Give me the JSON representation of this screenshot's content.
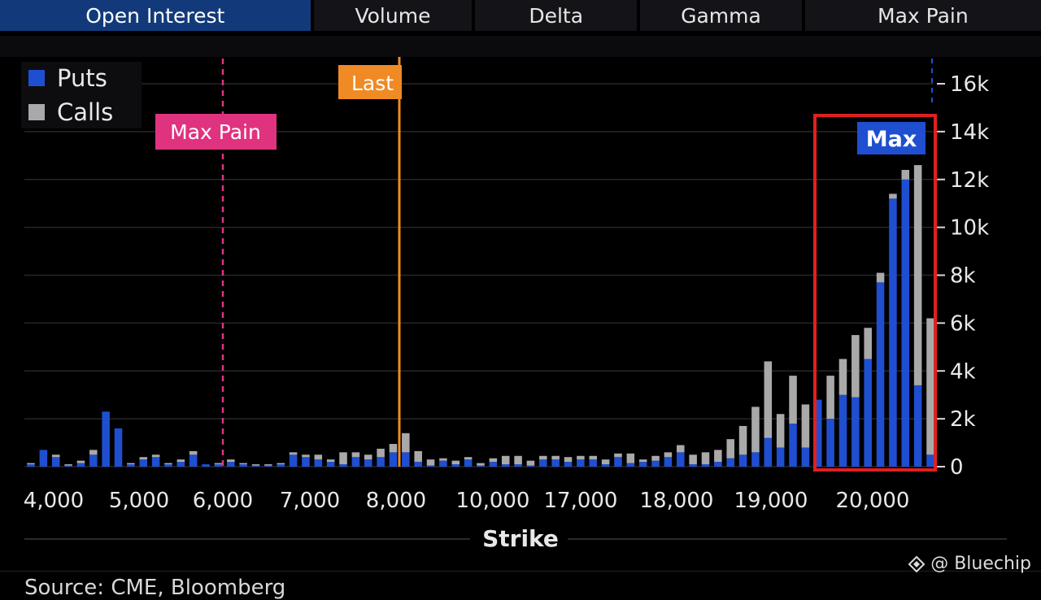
{
  "tabs": [
    {
      "label": "Open Interest",
      "active": true
    },
    {
      "label": "Volume",
      "active": false
    },
    {
      "label": "Delta",
      "active": false
    },
    {
      "label": "Gamma",
      "active": false
    },
    {
      "label": "Max Pain",
      "active": false
    }
  ],
  "watermark": "@ Bluechip",
  "caption": "Source: CME, Bloomberg",
  "colors": {
    "puts": "#1f4fd0",
    "calls": "#a9a9a9",
    "max_pain": "#e0337f",
    "last": "#f08a24",
    "highlight": "#e02020",
    "max_badge": "#1f4fd0"
  },
  "chart_data": {
    "type": "bar",
    "stacked": true,
    "xlabel": "Strike",
    "ylabel": "",
    "ylim": [
      0,
      16000
    ],
    "y_ticks": [
      0,
      2000,
      4000,
      6000,
      8000,
      10000,
      12000,
      14000,
      16000
    ],
    "y_tick_labels": [
      "0",
      "2k",
      "4k",
      "6k",
      "8k",
      "10k",
      "12k",
      "14k",
      "16k"
    ],
    "x_tick_labels": [
      "4,000",
      "5,000",
      "6,000",
      "7,000",
      "8,000",
      "10,000",
      "17,000",
      "18,000",
      "19,000",
      "20,000"
    ],
    "legend": {
      "placement": "top-left",
      "entries": [
        "Puts",
        "Calls"
      ]
    },
    "annotations": [
      {
        "label": "Max Pain",
        "strike": "6,000",
        "style": "dashed"
      },
      {
        "label": "Last",
        "strike": "8,000",
        "style": "solid"
      },
      {
        "label": "Max",
        "region": "20,000 strikes",
        "style": "box"
      }
    ],
    "puts": [
      100,
      700,
      400,
      50,
      150,
      500,
      2300,
      1600,
      100,
      300,
      400,
      100,
      200,
      500,
      100,
      100,
      200,
      100,
      50,
      50,
      100,
      500,
      400,
      300,
      200,
      100,
      400,
      300,
      400,
      600,
      600,
      200,
      50,
      250,
      100,
      300,
      50,
      200,
      100,
      100,
      50,
      300,
      300,
      200,
      300,
      300,
      100,
      400,
      150,
      200,
      250,
      400,
      600,
      100,
      100,
      200,
      350,
      500,
      600,
      1200,
      800,
      1800,
      800,
      2800,
      2000,
      3000,
      2900,
      4500,
      7700,
      11200,
      12000,
      3400,
      500
    ],
    "calls": [
      50,
      0,
      100,
      50,
      100,
      200,
      0,
      0,
      50,
      100,
      100,
      50,
      100,
      150,
      0,
      50,
      100,
      50,
      50,
      50,
      50,
      100,
      100,
      200,
      100,
      500,
      200,
      200,
      350,
      350,
      800,
      450,
      250,
      100,
      150,
      100,
      100,
      150,
      350,
      350,
      200,
      150,
      150,
      200,
      150,
      150,
      200,
      150,
      400,
      100,
      200,
      200,
      300,
      400,
      500,
      500,
      800,
      1200,
      1900,
      3200,
      1400,
      2000,
      1800,
      0,
      1800,
      1500,
      2600,
      1300,
      400,
      200,
      400,
      9200,
      5700
    ]
  }
}
